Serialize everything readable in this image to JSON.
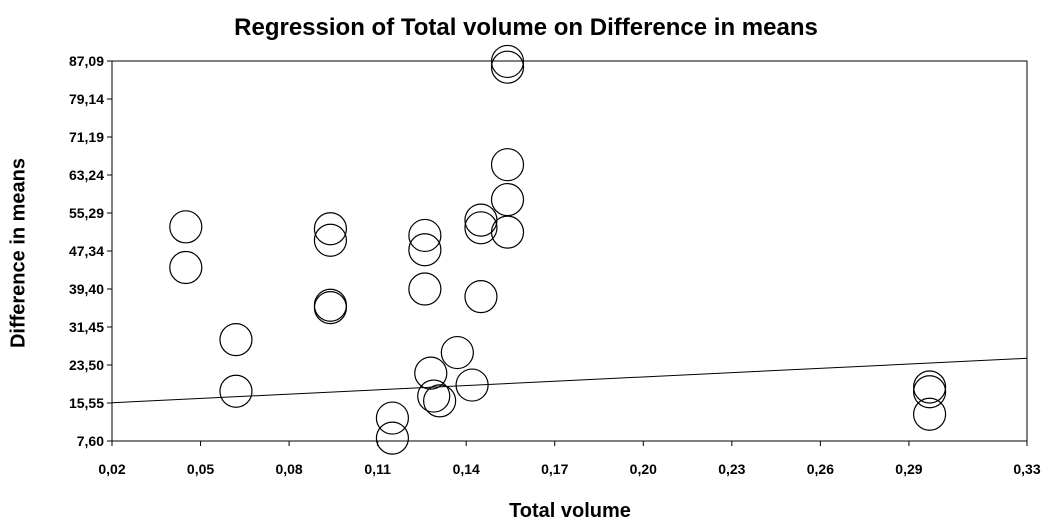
{
  "chart_data": {
    "type": "scatter",
    "title": "Regression of Total volume on Difference in means",
    "xlabel": "Total volume",
    "ylabel": "Difference in means",
    "xlim": [
      0.02,
      0.33
    ],
    "ylim": [
      7.6,
      87.09
    ],
    "x_ticks": [
      "0,02",
      "0,05",
      "0,08",
      "0,11",
      "0,14",
      "0,17",
      "0,20",
      "0,23",
      "0,26",
      "0,29",
      "0,33"
    ],
    "x_tick_values": [
      0.02,
      0.05,
      0.08,
      0.11,
      0.14,
      0.17,
      0.2,
      0.23,
      0.26,
      0.29,
      0.33
    ],
    "y_ticks": [
      "7,60",
      "15,55",
      "23,50",
      "31,45",
      "39,40",
      "47,34",
      "55,29",
      "63,24",
      "71,19",
      "79,14",
      "87,09"
    ],
    "y_tick_values": [
      7.6,
      15.55,
      23.5,
      31.45,
      39.4,
      47.34,
      55.29,
      63.24,
      71.19,
      79.14,
      87.09
    ],
    "grid": false,
    "regression_line": {
      "x": [
        0.02,
        0.33
      ],
      "y": [
        15.6,
        24.9
      ]
    },
    "points": [
      {
        "x": 0.045,
        "y": 52.4
      },
      {
        "x": 0.045,
        "y": 43.9
      },
      {
        "x": 0.062,
        "y": 28.8
      },
      {
        "x": 0.062,
        "y": 18.0
      },
      {
        "x": 0.094,
        "y": 52.0
      },
      {
        "x": 0.094,
        "y": 49.6
      },
      {
        "x": 0.094,
        "y": 36.0
      },
      {
        "x": 0.094,
        "y": 35.5
      },
      {
        "x": 0.115,
        "y": 12.4
      },
      {
        "x": 0.115,
        "y": 8.2
      },
      {
        "x": 0.126,
        "y": 50.6
      },
      {
        "x": 0.126,
        "y": 47.6
      },
      {
        "x": 0.126,
        "y": 39.4
      },
      {
        "x": 0.128,
        "y": 21.8
      },
      {
        "x": 0.129,
        "y": 17.0
      },
      {
        "x": 0.131,
        "y": 16.0
      },
      {
        "x": 0.137,
        "y": 26.1
      },
      {
        "x": 0.142,
        "y": 19.3
      },
      {
        "x": 0.145,
        "y": 53.8
      },
      {
        "x": 0.145,
        "y": 52.2
      },
      {
        "x": 0.145,
        "y": 37.8
      },
      {
        "x": 0.154,
        "y": 87.0
      },
      {
        "x": 0.154,
        "y": 85.8
      },
      {
        "x": 0.154,
        "y": 65.4
      },
      {
        "x": 0.154,
        "y": 58.1
      },
      {
        "x": 0.154,
        "y": 51.3
      },
      {
        "x": 0.297,
        "y": 18.9
      },
      {
        "x": 0.297,
        "y": 17.9
      },
      {
        "x": 0.297,
        "y": 13.2
      }
    ]
  }
}
